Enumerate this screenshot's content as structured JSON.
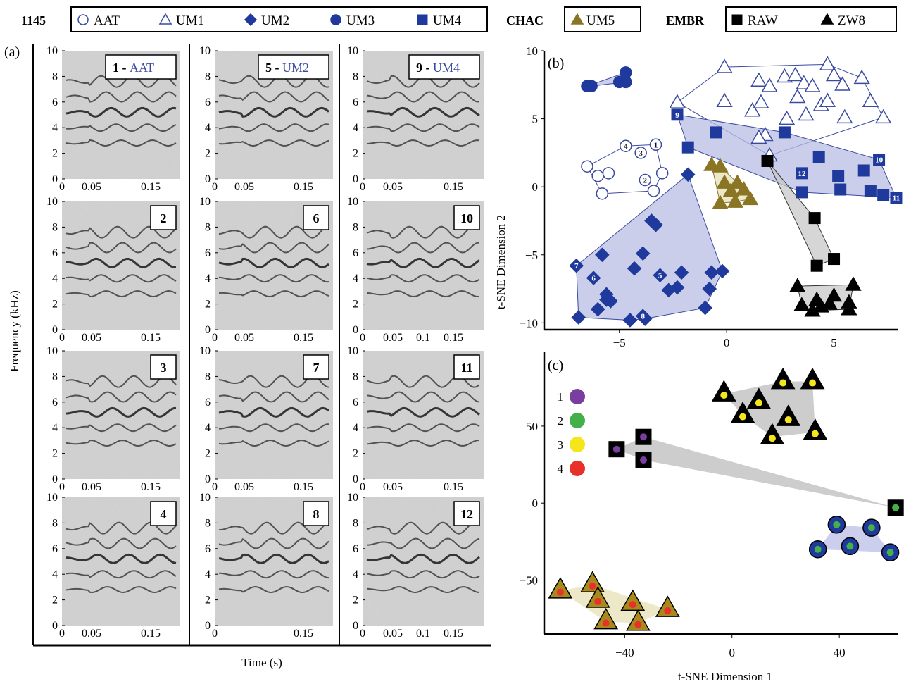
{
  "legend": {
    "group1_label": "1145",
    "group1_items": [
      {
        "label": "AAT",
        "marker": "open-circle",
        "color": "#3a4aa0"
      },
      {
        "label": "UM1",
        "marker": "open-triangle",
        "color": "#3a4aa0"
      },
      {
        "label": "UM2",
        "marker": "diamond",
        "color": "#1f3a9c"
      },
      {
        "label": "UM3",
        "marker": "circle",
        "color": "#1f3a9c"
      },
      {
        "label": "UM4",
        "marker": "square",
        "color": "#1f3a9c"
      }
    ],
    "group2_label": "CHAC",
    "group2_items": [
      {
        "label": "UM5",
        "marker": "triangle",
        "color": "#8a7525"
      }
    ],
    "group3_label": "EMBR",
    "group3_items": [
      {
        "label": "RAW",
        "marker": "square",
        "color": "#000000"
      },
      {
        "label": "ZW8",
        "marker": "triangle",
        "color": "#000000"
      }
    ]
  },
  "panel_a": {
    "panel_letter": "(a)",
    "ylabel": "Frequency (kHz)",
    "xlabel": "Time (s)",
    "y_ticks": [
      "0",
      "2",
      "4",
      "6",
      "8",
      "10"
    ],
    "spectrograms": [
      {
        "num": "1",
        "tag": "AAT",
        "x_ticks": [
          "0",
          "0.05",
          "0.15"
        ]
      },
      {
        "num": "5",
        "tag": "UM2",
        "x_ticks": [
          "0",
          "0.05",
          "0.15"
        ]
      },
      {
        "num": "9",
        "tag": "UM4",
        "x_ticks": [
          "0",
          "0.05",
          "0.15"
        ]
      },
      {
        "num": "2",
        "tag": "",
        "x_ticks": [
          "0",
          "0.05",
          "0.15"
        ]
      },
      {
        "num": "6",
        "tag": "",
        "x_ticks": [
          "0",
          "0.05",
          "0.15"
        ]
      },
      {
        "num": "10",
        "tag": "",
        "x_ticks": [
          "0",
          "0.05",
          "0.1",
          "0.15"
        ]
      },
      {
        "num": "3",
        "tag": "",
        "x_ticks": [
          "0",
          "0.05",
          "0.15"
        ]
      },
      {
        "num": "7",
        "tag": "",
        "x_ticks": [
          "0",
          "0.05",
          "0.15"
        ]
      },
      {
        "num": "11",
        "tag": "",
        "x_ticks": [
          "0",
          "0.05",
          "0.15"
        ]
      },
      {
        "num": "4",
        "tag": "",
        "x_ticks": [
          "0",
          "0.05",
          "0.15"
        ]
      },
      {
        "num": "8",
        "tag": "",
        "x_ticks": [
          "0",
          "0.15"
        ]
      },
      {
        "num": "12",
        "tag": "",
        "x_ticks": [
          "0",
          "0.05",
          "0.1",
          "0.15"
        ]
      }
    ]
  },
  "chart_data": [
    {
      "type": "scatter",
      "panel_letter": "(b)",
      "xlabel": "",
      "ylabel": "t-SNE Dimension 2",
      "xlim": [
        -8.5,
        8
      ],
      "ylim": [
        -10.5,
        10
      ],
      "x_ticks": [
        -5,
        0,
        5
      ],
      "y_ticks": [
        -10,
        -5,
        0,
        5,
        10
      ],
      "series": [
        {
          "name": "AAT",
          "marker": "open-circle",
          "color": "#3a4aa0",
          "points": [
            [
              -6.5,
              1.5
            ],
            [
              -6.0,
              0.8
            ],
            [
              -5.8,
              -0.5
            ],
            [
              -4.7,
              3.0
            ],
            [
              -4.0,
              2.5
            ],
            [
              -3.8,
              0.5
            ],
            [
              -3.4,
              -0.3
            ],
            [
              -3.3,
              3.1
            ],
            [
              -3.0,
              1.0
            ],
            [
              -5.5,
              1.0
            ]
          ],
          "point_labels": {
            "3": "4",
            "5": "2",
            "4": "3",
            "7": "1"
          }
        },
        {
          "name": "UM1",
          "marker": "open-triangle",
          "color": "#3a4aa0",
          "points": [
            [
              -2.3,
              6.2
            ],
            [
              -0.1,
              8.8
            ],
            [
              -0.1,
              6.3
            ],
            [
              1.2,
              5.6
            ],
            [
              1.5,
              7.8
            ],
            [
              1.6,
              6.2
            ],
            [
              1.8,
              3.8
            ],
            [
              2.0,
              7.4
            ],
            [
              2.7,
              8.1
            ],
            [
              2.8,
              5.0
            ],
            [
              3.2,
              8.2
            ],
            [
              3.3,
              6.6
            ],
            [
              3.6,
              7.6
            ],
            [
              3.7,
              5.3
            ],
            [
              4.0,
              7.4
            ],
            [
              4.4,
              6.0
            ],
            [
              4.7,
              6.3
            ],
            [
              4.7,
              9.0
            ],
            [
              5.0,
              8.2
            ],
            [
              5.4,
              7.5
            ],
            [
              5.5,
              5.1
            ],
            [
              6.3,
              8.0
            ],
            [
              6.7,
              6.3
            ],
            [
              7.3,
              5.1
            ],
            [
              1.5,
              3.6
            ],
            [
              2.0,
              2.3
            ]
          ],
          "point_labels": {}
        },
        {
          "name": "UM2",
          "marker": "diamond",
          "color": "#1f3a9c",
          "points": [
            [
              -7.0,
              -5.8
            ],
            [
              -6.9,
              -9.6
            ],
            [
              -6.0,
              -9.0
            ],
            [
              -5.8,
              -5.0
            ],
            [
              -5.6,
              -8.3
            ],
            [
              -5.6,
              -7.9
            ],
            [
              -5.4,
              -8.4
            ],
            [
              -4.5,
              -9.8
            ],
            [
              -4.3,
              -6.0
            ],
            [
              -3.9,
              -4.9
            ],
            [
              -3.8,
              -9.7
            ],
            [
              -3.5,
              -2.5
            ],
            [
              -3.3,
              -2.8
            ],
            [
              -3.1,
              -6.5
            ],
            [
              -2.7,
              -7.6
            ],
            [
              -2.3,
              -7.4
            ],
            [
              -2.1,
              -6.3
            ],
            [
              -1.8,
              0.9
            ],
            [
              -1.0,
              -8.9
            ],
            [
              -0.8,
              -7.5
            ],
            [
              -0.7,
              -6.3
            ],
            [
              -0.2,
              -6.2
            ],
            [
              -6.2,
              -6.7
            ],
            [
              -3.9,
              -9.5
            ]
          ],
          "point_labels": {
            "0": "7",
            "22": "6",
            "13": "5",
            "23": "8"
          }
        },
        {
          "name": "UM3",
          "marker": "circle",
          "color": "#1f3a9c",
          "points": [
            [
              -6.5,
              7.4
            ],
            [
              -6.3,
              7.4
            ],
            [
              -5.0,
              7.7
            ],
            [
              -4.7,
              7.7
            ],
            [
              -4.7,
              8.4
            ]
          ],
          "point_labels": {}
        },
        {
          "name": "UM4",
          "marker": "square",
          "color": "#1f3a9c",
          "points": [
            [
              -2.3,
              5.3
            ],
            [
              -1.8,
              2.9
            ],
            [
              -0.5,
              4.0
            ],
            [
              3.5,
              -0.4
            ],
            [
              4.3,
              2.2
            ],
            [
              5.2,
              0.8
            ],
            [
              5.3,
              -0.2
            ],
            [
              6.4,
              1.2
            ],
            [
              6.7,
              -0.3
            ],
            [
              7.1,
              2.0
            ],
            [
              7.3,
              -0.6
            ],
            [
              7.9,
              -0.8
            ],
            [
              2.7,
              4.0
            ],
            [
              3.5,
              1.0
            ]
          ],
          "point_labels": {
            "0": "9",
            "9": "10",
            "11": "11",
            "13": "12"
          }
        },
        {
          "name": "UM5",
          "marker": "triangle",
          "color": "#8a7525",
          "points": [
            [
              -0.7,
              1.6
            ],
            [
              -0.3,
              1.5
            ],
            [
              -0.1,
              0.3
            ],
            [
              0.2,
              -0.3
            ],
            [
              0.4,
              -1.1
            ],
            [
              0.5,
              0.3
            ],
            [
              0.8,
              -0.2
            ],
            [
              1.1,
              -0.9
            ],
            [
              -0.3,
              -1.2
            ]
          ],
          "point_labels": {}
        },
        {
          "name": "RAW",
          "marker": "square",
          "color": "#000000",
          "points": [
            [
              1.9,
              1.9
            ],
            [
              4.1,
              -2.3
            ],
            [
              4.2,
              -5.8
            ],
            [
              5.0,
              -5.3
            ]
          ],
          "point_labels": {}
        },
        {
          "name": "ZW8",
          "marker": "triangle",
          "color": "#000000",
          "points": [
            [
              3.3,
              -7.3
            ],
            [
              3.5,
              -8.7
            ],
            [
              4.0,
              -9.1
            ],
            [
              4.2,
              -8.3
            ],
            [
              4.4,
              -8.8
            ],
            [
              4.8,
              -8.6
            ],
            [
              5.0,
              -8.0
            ],
            [
              5.7,
              -8.5
            ],
            [
              5.9,
              -7.2
            ],
            [
              5.7,
              -9.0
            ]
          ],
          "point_labels": {}
        }
      ]
    },
    {
      "type": "scatter",
      "panel_letter": "(c)",
      "xlabel": "t-SNE Dimension 1",
      "ylabel": "",
      "xlim": [
        -70,
        62
      ],
      "ylim": [
        -85,
        98
      ],
      "x_ticks": [
        -40,
        0,
        40
      ],
      "y_ticks": [
        -50,
        0,
        50
      ],
      "dot_legend": [
        {
          "label": "1",
          "color": "#7a3ea0"
        },
        {
          "label": "2",
          "color": "#44b04a"
        },
        {
          "label": "3",
          "color": "#f5e61c"
        },
        {
          "label": "4",
          "color": "#e8312a"
        }
      ],
      "series": [
        {
          "name": "ZW8",
          "marker": "triangle",
          "fill": "#a88a1c",
          "dot": "#e8312a",
          "points": [
            [
              -64,
              -57
            ],
            [
              -52,
              -53
            ],
            [
              -50,
              -63
            ],
            [
              -47,
              -77
            ],
            [
              -37,
              -65
            ],
            [
              -35,
              -78
            ],
            [
              -24,
              -69
            ]
          ]
        },
        {
          "name": "RAW",
          "marker": "square",
          "fill": "#000000",
          "dot": "#7a3ea0",
          "points": [
            [
              -43,
              35
            ],
            [
              -33,
              43
            ],
            [
              -33,
              28
            ]
          ]
        },
        {
          "name": "RAW",
          "marker": "square",
          "fill": "#000000",
          "dot": "#44b04a",
          "points": [
            [
              61,
              -3
            ]
          ]
        },
        {
          "name": "ZW8",
          "marker": "triangle",
          "fill": "#000000",
          "dot": "#f5e61c",
          "points": [
            [
              -3,
              71
            ],
            [
              4,
              57
            ],
            [
              10,
              66
            ],
            [
              15,
              43
            ],
            [
              19,
              79
            ],
            [
              21,
              55
            ],
            [
              30,
              79
            ],
            [
              31,
              46
            ]
          ]
        },
        {
          "name": "UM3",
          "marker": "circle",
          "fill": "#1f3a9c",
          "dot": "#44b04a",
          "points": [
            [
              32,
              -30
            ],
            [
              39,
              -14
            ],
            [
              44,
              -28
            ],
            [
              52,
              -16
            ],
            [
              59,
              -32
            ]
          ]
        }
      ]
    }
  ]
}
